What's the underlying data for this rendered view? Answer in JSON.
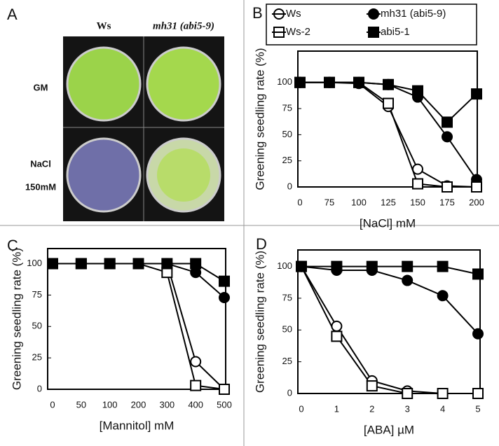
{
  "panel_a": {
    "label": "A",
    "columns": [
      "Ws",
      "mh31 (abi5-9)"
    ],
    "rows": [
      [
        "GM"
      ],
      [
        "NaCl",
        "150mM"
      ]
    ]
  },
  "chart_data": [
    {
      "type": "line",
      "panel": "B",
      "xlabel": "[NaCl] mM",
      "ylabel": "Greening seedling rate (%)",
      "categories": [
        "0",
        "75",
        "100",
        "125",
        "150",
        "175",
        "200"
      ],
      "ylim": [
        0,
        130
      ],
      "yticks": [
        0,
        25,
        50,
        75,
        100
      ],
      "legend": "top",
      "series": [
        {
          "name": "Ws",
          "color": "#000000",
          "marker": "circle",
          "filled": false,
          "values": [
            100,
            100,
            99,
            77,
            17,
            1,
            0
          ]
        },
        {
          "name": "mh31 (abi5-9)",
          "color": "#000000",
          "marker": "circle",
          "filled": true,
          "values": [
            100,
            100,
            100,
            98,
            86,
            48,
            7
          ]
        },
        {
          "name": "Ws-2",
          "color": "#000000",
          "marker": "square",
          "filled": false,
          "values": [
            100,
            100,
            100,
            80,
            3,
            0,
            0
          ]
        },
        {
          "name": "abi5-1",
          "color": "#000000",
          "marker": "square",
          "filled": true,
          "values": [
            100,
            100,
            100,
            98,
            92,
            62,
            89
          ]
        }
      ]
    },
    {
      "type": "line",
      "panel": "C",
      "xlabel": "[Mannitol] mM",
      "ylabel": "Greening seedling rate (%)",
      "categories": [
        "0",
        "50",
        "100",
        "200",
        "300",
        "400",
        "500"
      ],
      "ylim": [
        0,
        112
      ],
      "yticks": [
        0,
        25,
        50,
        75,
        100
      ],
      "series": [
        {
          "color": "#000000",
          "marker": "circle",
          "filled": false,
          "values": [
            100,
            100,
            100,
            100,
            100,
            22,
            0
          ]
        },
        {
          "color": "#000000",
          "marker": "circle",
          "filled": true,
          "values": [
            100,
            100,
            100,
            100,
            100,
            93,
            73
          ]
        },
        {
          "color": "#000000",
          "marker": "square",
          "filled": false,
          "values": [
            100,
            100,
            100,
            100,
            93,
            3,
            0
          ]
        },
        {
          "color": "#000000",
          "marker": "square",
          "filled": true,
          "values": [
            100,
            100,
            100,
            100,
            100,
            100,
            86
          ]
        }
      ]
    },
    {
      "type": "line",
      "panel": "D",
      "xlabel": "[ABA] µM",
      "ylabel": "Greening seedling rate (%)",
      "categories": [
        "0",
        "1",
        "2",
        "3",
        "4",
        "5"
      ],
      "ylim": [
        0,
        113
      ],
      "yticks": [
        0,
        25,
        50,
        75,
        100
      ],
      "series": [
        {
          "color": "#000000",
          "marker": "circle",
          "filled": false,
          "values": [
            100,
            53,
            10,
            2,
            0,
            0
          ]
        },
        {
          "color": "#000000",
          "marker": "circle",
          "filled": true,
          "values": [
            100,
            97,
            97,
            89,
            77,
            47
          ]
        },
        {
          "color": "#000000",
          "marker": "square",
          "filled": false,
          "values": [
            100,
            45,
            6,
            0,
            0,
            0
          ]
        },
        {
          "color": "#000000",
          "marker": "square",
          "filled": true,
          "values": [
            100,
            100,
            100,
            100,
            100,
            94
          ]
        }
      ]
    }
  ]
}
